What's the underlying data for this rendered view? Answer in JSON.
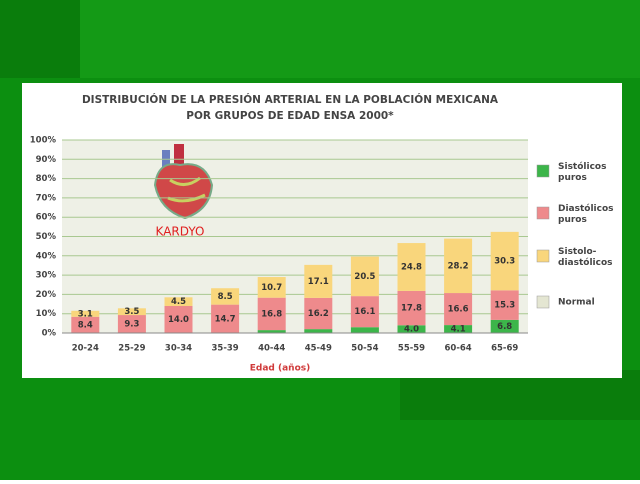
{
  "chart_data": {
    "type": "stacked_bar",
    "title": "DISTRIBUCIÓN DE LA PRESIÓN ARTERIAL EN LA POBLACIÓN MEXICANA",
    "subtitle": "POR GRUPOS DE EDAD ENSA 2000*",
    "annotation": "KARDYO",
    "x_label": "Edad (años)",
    "categories": [
      "20-24",
      "25-29",
      "30-34",
      "35-39",
      "40-44",
      "45-49",
      "50-54",
      "55-59",
      "60-64",
      "65-69"
    ],
    "series": [
      {
        "name": "Sistólicos puros",
        "color": "#3cb54a",
        "values": [
          0,
          0,
          0,
          0,
          1.5,
          2,
          3,
          4.0,
          4.1,
          6.8
        ],
        "value_labels": [
          null,
          null,
          null,
          null,
          null,
          null,
          null,
          "4.0",
          "4.1",
          "6.8"
        ]
      },
      {
        "name": "Diastólicos puros",
        "color": "#ee8a8c",
        "values": [
          8.4,
          9.3,
          14.0,
          14.7,
          16.8,
          16.2,
          16.1,
          17.8,
          16.6,
          15.3
        ],
        "value_labels": [
          "8.4",
          "9.3",
          "14.0",
          "14.7",
          "16.8",
          "16.2",
          "16.1",
          "17.8",
          "16.6",
          "15.3"
        ]
      },
      {
        "name": "Sistolo-diastólicos",
        "color": "#f9d67c",
        "values": [
          3.1,
          3.5,
          4.5,
          8.5,
          10.7,
          17.1,
          20.5,
          24.8,
          28.2,
          30.3
        ],
        "value_labels": [
          "3.1",
          "3.5",
          "4.5",
          "8.5",
          "10.7",
          "17.1",
          "20.5",
          "24.8",
          "28.2",
          "30.3"
        ]
      },
      {
        "name": "Normal",
        "color": "#e4e6d2",
        "values": [
          null,
          null,
          null,
          null,
          null,
          null,
          null,
          null,
          null,
          null
        ]
      }
    ],
    "ylim": [
      0,
      100
    ],
    "yticks": [
      {
        "value": 0,
        "label": "0%"
      },
      {
        "value": 10,
        "label": "10%"
      },
      {
        "value": 20,
        "label": "20%"
      },
      {
        "value": 30,
        "label": "30%"
      },
      {
        "value": 40,
        "label": "40%"
      },
      {
        "value": 50,
        "label": "50%"
      },
      {
        "value": 60,
        "label": "60%"
      },
      {
        "value": 70,
        "label": "70%"
      },
      {
        "value": 80,
        "label": "80%"
      },
      {
        "value": 90,
        "label": "90%"
      },
      {
        "value": 100,
        "label": "100%"
      }
    ],
    "grid": true,
    "legend": "right"
  }
}
